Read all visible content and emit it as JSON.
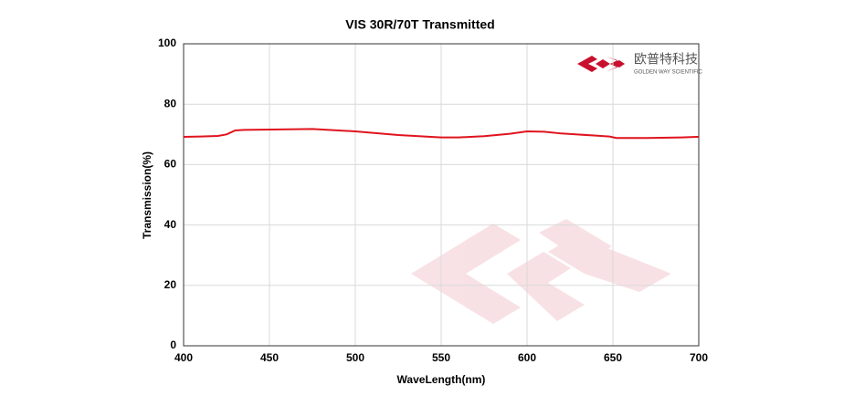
{
  "chart_data": {
    "type": "line",
    "title": "VIS 30R/70T Transmitted",
    "x_label": "WaveLength(nm)",
    "y_label": "Transmission(%)",
    "x": [
      400,
      410,
      420,
      425,
      430,
      435,
      450,
      475,
      500,
      525,
      550,
      560,
      575,
      590,
      600,
      610,
      620,
      640,
      648,
      652,
      670,
      690,
      700
    ],
    "series": [
      {
        "name": "VIS 30R/70T",
        "color": "#e0141e",
        "values": [
          69.2,
          69.3,
          69.5,
          70.0,
          71.3,
          71.5,
          71.6,
          71.8,
          71.0,
          69.8,
          69.0,
          69.0,
          69.4,
          70.2,
          71.0,
          70.9,
          70.3,
          69.6,
          69.3,
          68.8,
          68.8,
          69.0,
          69.2
        ]
      }
    ],
    "xlim": [
      400,
      700
    ],
    "xticks": [
      400,
      450,
      500,
      550,
      600,
      650,
      700
    ],
    "ylim": [
      0,
      100
    ],
    "yticks": [
      0,
      20,
      40,
      60,
      80,
      100
    ],
    "grid": true
  },
  "logo": {
    "name": "欧普特科技",
    "tagline": "GOLDEN WAY SCIENTIFIC"
  }
}
